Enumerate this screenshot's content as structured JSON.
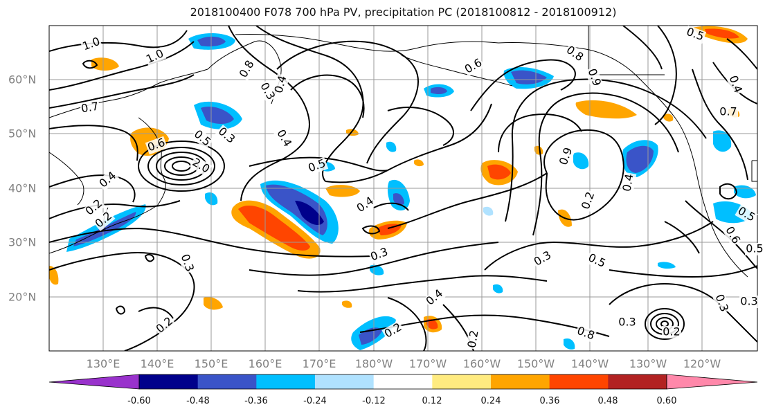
{
  "title": "2018100400 F078 700 hPa PV, precipitation PC (2018100812 - 2018100912)",
  "longitude_ticks": [
    "130°E",
    "140°E",
    "150°E",
    "160°E",
    "170°E",
    "180°W",
    "170°W",
    "160°W",
    "150°W",
    "140°W",
    "130°W",
    "120°W"
  ],
  "latitude_ticks": [
    "60°N",
    "50°N",
    "40°N",
    "30°N",
    "20°N"
  ],
  "colorbar": {
    "labels": [
      "-0.60",
      "-0.48",
      "-0.36",
      "-0.24",
      "-0.12",
      "0.12",
      "0.24",
      "0.36",
      "0.48",
      "0.60"
    ],
    "colors": [
      "#9932cc",
      "#00008b",
      "#3a54c8",
      "#00bfff",
      "#b0e2ff",
      "#ffffff",
      "#ffeb80",
      "#ffa500",
      "#ff4500",
      "#b22222",
      "#ff88aa"
    ]
  },
  "contour_labels": [
    "1.0",
    "1.0",
    "0.7",
    "0.8",
    "0.8",
    "0.9",
    "0.5",
    "0.6",
    "0.5",
    "0.4",
    "0.3",
    "0.4",
    "0.3",
    "0.2",
    "0.2",
    "0.2",
    "0.4",
    "0.3",
    "0.5",
    "0.8",
    "0.9",
    "0.2",
    "0.3",
    "0.4",
    "0.7",
    "0.4",
    "0.5",
    "0.6",
    "0.5",
    "0.4",
    "0.3",
    "0.2",
    "0.2",
    "0.3",
    "0.3",
    "0.5",
    "2.0",
    "0.6",
    "0.4",
    "0.2",
    "0.3"
  ]
}
